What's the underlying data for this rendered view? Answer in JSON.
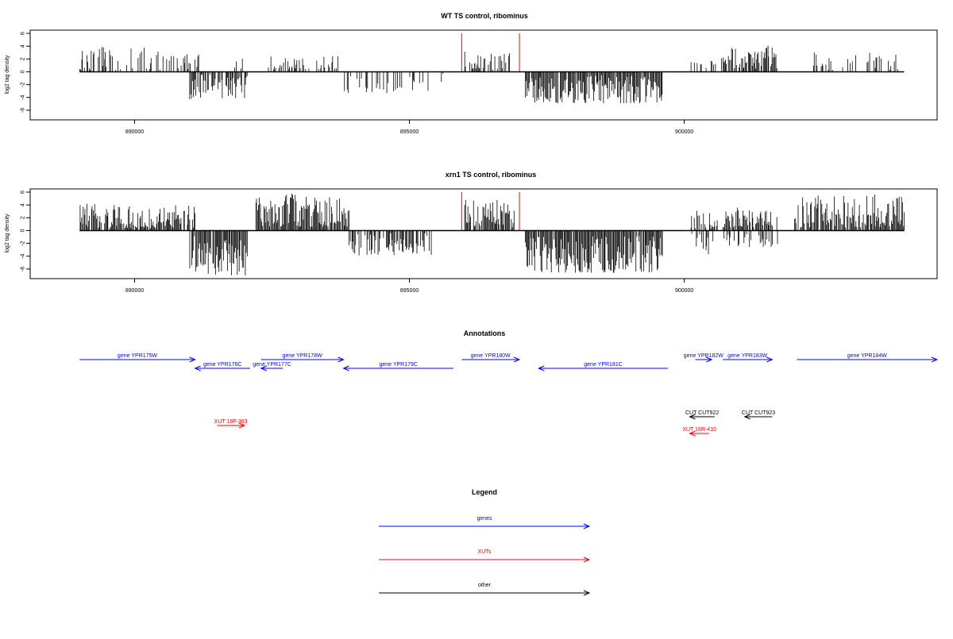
{
  "chart_data": [
    {
      "type": "bar",
      "title": "WT TS control, ribominus",
      "ylabel": "log2 tag density",
      "xlabel": "",
      "xlim": [
        888100,
        904600
      ],
      "ylim": [
        -7.5,
        6.5
      ],
      "x_ticks": [
        890000,
        895000,
        900000
      ],
      "x_tick_labels": [
        "890000",
        "895000",
        "900000"
      ],
      "y_ticks": [
        -6,
        -4,
        -2,
        0,
        2,
        4,
        6
      ],
      "y_tick_labels": [
        "-6",
        "-4",
        "-2",
        "0",
        "2",
        "4",
        "6"
      ],
      "baseline_range": [
        889000,
        904000
      ],
      "red_markers": [
        {
          "x": 895950,
          "value": 6.0
        },
        {
          "x": 897000,
          "value": 6.0
        }
      ],
      "signal_segments": [
        {
          "start": 889000,
          "end": 890500,
          "value_min": 0.3,
          "value_max": 4.2,
          "strand": "+",
          "density": 0.35
        },
        {
          "start": 890500,
          "end": 891200,
          "value_min": 0.4,
          "value_max": 2.8,
          "strand": "+",
          "density": 0.55
        },
        {
          "start": 891000,
          "end": 892050,
          "value_min": -4.3,
          "value_max": -0.4,
          "strand": "-",
          "density": 0.8
        },
        {
          "start": 891800,
          "end": 892050,
          "value_min": 0.5,
          "value_max": 2.2,
          "strand": "+",
          "density": 0.3
        },
        {
          "start": 892400,
          "end": 893700,
          "value_min": 0.4,
          "value_max": 2.6,
          "strand": "+",
          "density": 0.55
        },
        {
          "start": 893800,
          "end": 895700,
          "value_min": -3.4,
          "value_max": -0.3,
          "strand": "-",
          "density": 0.25
        },
        {
          "start": 896000,
          "end": 896900,
          "value_min": 0.3,
          "value_max": 3.2,
          "strand": "+",
          "density": 0.5
        },
        {
          "start": 897100,
          "end": 899600,
          "value_min": -4.9,
          "value_max": -0.5,
          "strand": "-",
          "density": 0.95
        },
        {
          "start": 900100,
          "end": 900700,
          "value_min": 0.3,
          "value_max": 2.2,
          "strand": "+",
          "density": 0.35
        },
        {
          "start": 900700,
          "end": 901700,
          "value_min": 0.5,
          "value_max": 4.1,
          "strand": "+",
          "density": 0.9
        },
        {
          "start": 902200,
          "end": 903900,
          "value_min": 0.3,
          "value_max": 3.1,
          "strand": "+",
          "density": 0.3
        }
      ]
    },
    {
      "type": "bar",
      "title": "xrn1 TS control, ribominus",
      "ylabel": "log2 tag density",
      "xlabel": "",
      "xlim": [
        888100,
        904600
      ],
      "ylim": [
        -7.5,
        6.5
      ],
      "x_ticks": [
        890000,
        895000,
        900000
      ],
      "x_tick_labels": [
        "890000",
        "895000",
        "900000"
      ],
      "y_ticks": [
        -6,
        -4,
        -2,
        0,
        2,
        4,
        6
      ],
      "y_tick_labels": [
        "-6",
        "-4",
        "-2",
        "0",
        "2",
        "4",
        "6"
      ],
      "baseline_range": [
        889000,
        904000
      ],
      "red_markers": [
        {
          "x": 895950,
          "value": 6.0
        },
        {
          "x": 897000,
          "value": 6.0
        }
      ],
      "signal_segments": [
        {
          "start": 889000,
          "end": 891100,
          "value_min": 0.4,
          "value_max": 4.2,
          "strand": "+",
          "density": 0.9
        },
        {
          "start": 891000,
          "end": 892050,
          "value_min": -7.0,
          "value_max": -0.8,
          "strand": "-",
          "density": 0.95
        },
        {
          "start": 892200,
          "end": 893900,
          "value_min": 0.6,
          "value_max": 5.8,
          "strand": "+",
          "density": 0.9
        },
        {
          "start": 893900,
          "end": 895400,
          "value_min": -3.9,
          "value_max": -0.4,
          "strand": "-",
          "density": 0.7
        },
        {
          "start": 896000,
          "end": 896900,
          "value_min": 0.5,
          "value_max": 4.8,
          "strand": "+",
          "density": 0.9
        },
        {
          "start": 897100,
          "end": 899600,
          "value_min": -6.6,
          "value_max": -0.8,
          "strand": "-",
          "density": 0.95
        },
        {
          "start": 900100,
          "end": 900600,
          "value_min": 0.3,
          "value_max": 3.2,
          "strand": "+",
          "density": 0.6
        },
        {
          "start": 900100,
          "end": 900600,
          "value_min": -3.8,
          "value_max": -0.4,
          "strand": "-",
          "density": 0.35
        },
        {
          "start": 900700,
          "end": 901700,
          "value_min": 0.4,
          "value_max": 3.6,
          "strand": "+",
          "density": 0.85
        },
        {
          "start": 900700,
          "end": 901700,
          "value_min": -2.6,
          "value_max": -0.3,
          "strand": "-",
          "density": 0.45
        },
        {
          "start": 902000,
          "end": 904000,
          "value_min": 0.5,
          "value_max": 5.7,
          "strand": "+",
          "density": 0.9
        }
      ]
    }
  ],
  "annotations": {
    "title": "Annotations",
    "colors": {
      "genes": "#0000ff",
      "xuts": "#ff0000",
      "other": "#000000"
    },
    "features": [
      {
        "label": "gene YPR175W",
        "start": 889000,
        "end": 891100,
        "strand": "+",
        "kind": "genes",
        "row": 0
      },
      {
        "label": "gene YPR176C",
        "start": 891100,
        "end": 892100,
        "strand": "-",
        "kind": "genes",
        "row": 1
      },
      {
        "label": "gene YPR177C",
        "start": 892300,
        "end": 892700,
        "strand": "-",
        "kind": "genes",
        "row": 1
      },
      {
        "label": "gene YPR178W",
        "start": 892300,
        "end": 893800,
        "strand": "+",
        "kind": "genes",
        "row": 0
      },
      {
        "label": "gene YPR179C",
        "start": 893800,
        "end": 895800,
        "strand": "-",
        "kind": "genes",
        "row": 1
      },
      {
        "label": "gene YPR180W",
        "start": 895950,
        "end": 897000,
        "strand": "+",
        "kind": "genes",
        "row": 0
      },
      {
        "label": "gene YPR181C",
        "start": 897350,
        "end": 899700,
        "strand": "-",
        "kind": "genes",
        "row": 1
      },
      {
        "label": "gene YPR182W",
        "start": 900200,
        "end": 900500,
        "strand": "+",
        "kind": "genes",
        "row": 0
      },
      {
        "label": "gene YPR183W",
        "start": 900700,
        "end": 901600,
        "strand": "+",
        "kind": "genes",
        "row": 0
      },
      {
        "label": "gene YPR184W",
        "start": 902050,
        "end": 904600,
        "strand": "+",
        "kind": "genes",
        "row": 0
      },
      {
        "label": "CUT CUT922",
        "start": 900100,
        "end": 900550,
        "strand": "-",
        "kind": "other",
        "row": 2
      },
      {
        "label": "CUT CUT923",
        "start": 901100,
        "end": 901600,
        "strand": "-",
        "kind": "other",
        "row": 2
      },
      {
        "label": "XUT 16F-363",
        "start": 891500,
        "end": 892000,
        "strand": "+",
        "kind": "xuts",
        "row": 3
      },
      {
        "label": "XUT 16R-410",
        "start": 900100,
        "end": 900450,
        "strand": "-",
        "kind": "xuts",
        "row": 4
      }
    ]
  },
  "legend": {
    "title": "Legend",
    "items": [
      {
        "label": "genes",
        "color": "#0000ff"
      },
      {
        "label": "XUTs",
        "color": "#ff0000"
      },
      {
        "label": "other",
        "color": "#000000"
      }
    ]
  }
}
